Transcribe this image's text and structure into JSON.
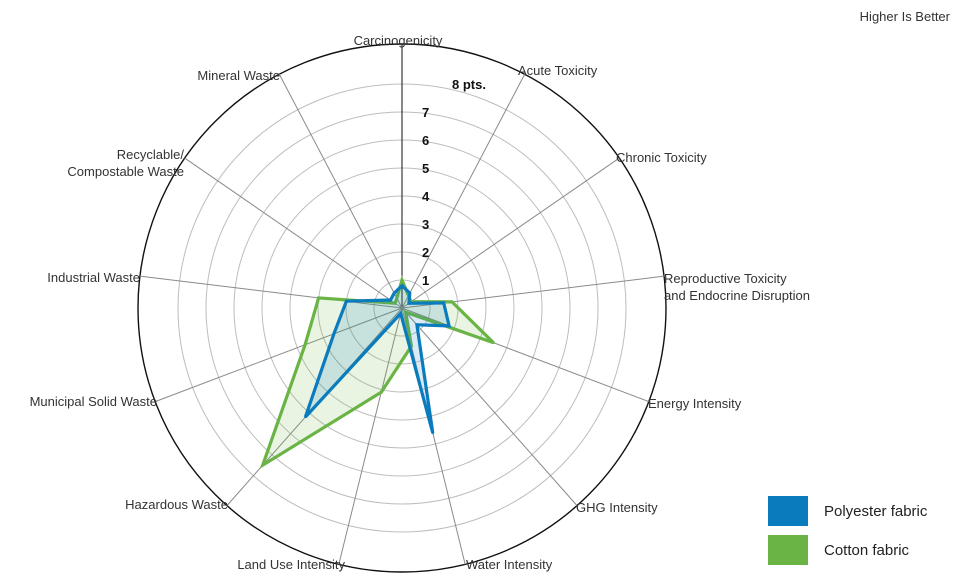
{
  "chart_data": {
    "type": "radar",
    "note": "Higher Is Better",
    "axes": [
      "Carcinogenicity",
      "Acute Toxicity",
      "Chronic Toxicity",
      "Reproductive Toxicity\nand Endocrine Disruption",
      "Energy Intensity",
      "GHG  Intensity",
      "Water Intensity",
      "Land Use Intensity",
      "Hazardous Waste",
      "Municipal Solid Waste",
      "Industrial Waste",
      "Recyclable/\nCompostable Waste",
      "Mineral Waste"
    ],
    "ticks": [
      "1",
      "2",
      "3",
      "4",
      "5",
      "6",
      "7",
      "8 pts."
    ],
    "rlim": [
      0,
      8
    ],
    "series": [
      {
        "name": "Polyester fabric",
        "color": "#0a7bbd",
        "values": [
          0.8,
          0.6,
          0.3,
          1.5,
          1.8,
          0.8,
          4.6,
          0.2,
          5.2,
          2.6,
          2.0,
          0.5,
          0.6
        ]
      },
      {
        "name": "Cotton fabric",
        "color": "#6ab446",
        "values": [
          1.0,
          0.5,
          0.4,
          1.8,
          3.5,
          0.2,
          1.4,
          3.1,
          7.5,
          3.7,
          3.0,
          0.3,
          0.4
        ]
      }
    ]
  },
  "legend": {
    "items": [
      "Polyester fabric",
      "Cotton fabric"
    ]
  }
}
